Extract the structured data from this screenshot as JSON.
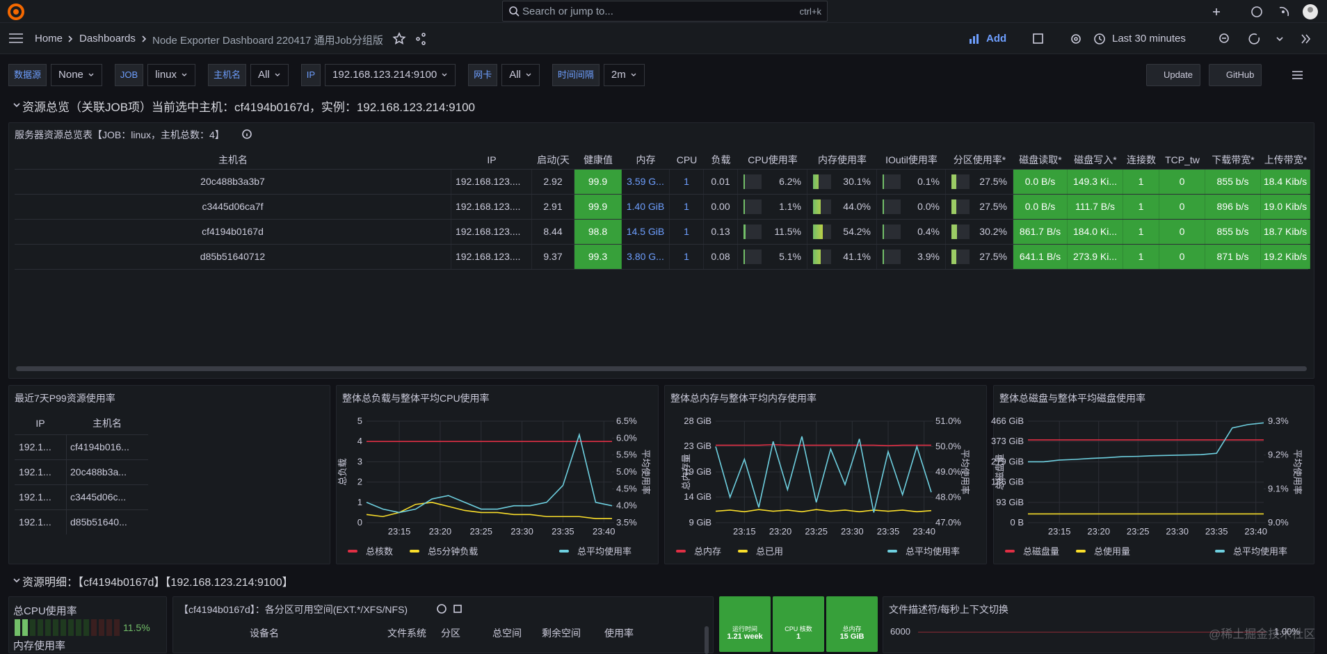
{
  "topbar": {
    "search": "Search or jump to...",
    "shortcut": "ctrl+k"
  },
  "breadcrumb": [
    "Home",
    "Dashboards",
    "Node Exporter Dashboard 220417 通用Job分组版"
  ],
  "toolbar": {
    "add": "Add",
    "time": "Last 30 minutes"
  },
  "variables": [
    {
      "label": "数据源",
      "value": "None"
    },
    {
      "label": "JOB",
      "value": "linux"
    },
    {
      "label": "主机名",
      "value": "All"
    },
    {
      "label": "IP",
      "value": "192.168.123.214:9100"
    },
    {
      "label": "网卡",
      "value": "All"
    },
    {
      "label": "时间间隔",
      "value": "2m"
    }
  ],
  "buttons": [
    "Update",
    "GitHub"
  ],
  "row1": "资源总览（关联JOB项）当前选中主机：cf4194b0167d，实例：192.168.123.214:9100",
  "table": {
    "title": "服务器资源总览表【JOB：linux，主机总数：4】",
    "columns": [
      "主机名",
      "IP",
      "启动(天",
      "健康值",
      "内存",
      "CPU",
      "负载",
      "CPU使用率",
      "内存使用率",
      "IOutil使用率",
      "分区使用率*",
      "磁盘读取*",
      "磁盘写入*",
      "连接数",
      "TCP_tw",
      "下载带宽*",
      "上传带宽*"
    ],
    "rows": [
      [
        "20c488b3a3b7",
        "192.168.123....",
        "2.92",
        "99.9",
        "3.59 G...",
        "1",
        "0.01",
        "6.2%",
        "30.1%",
        "0.1%",
        "27.5%",
        "0.0 B/s",
        "149.3 Ki...",
        "1",
        "0",
        "855 b/s",
        "18.4 Kib/s"
      ],
      [
        "c3445d06ca7f",
        "192.168.123....",
        "2.91",
        "99.9",
        "1.40 GiB",
        "1",
        "0.00",
        "1.1%",
        "44.0%",
        "0.0%",
        "27.5%",
        "0.0 B/s",
        "111.7 B/s",
        "1",
        "0",
        "896 b/s",
        "19.0 Kib/s"
      ],
      [
        "cf4194b0167d",
        "192.168.123....",
        "8.44",
        "98.8",
        "14.5 GiB",
        "1",
        "0.13",
        "11.5%",
        "54.2%",
        "0.4%",
        "30.2%",
        "861.7 B/s",
        "184.0 Ki...",
        "1",
        "0",
        "855 b/s",
        "18.7 Kib/s"
      ],
      [
        "d85b51640712",
        "192.168.123....",
        "9.37",
        "99.3",
        "3.80 G...",
        "1",
        "0.08",
        "5.1%",
        "41.1%",
        "3.9%",
        "27.5%",
        "641.1 B/s",
        "273.9 Ki...",
        "1",
        "0",
        "871 b/s",
        "19.2 Kib/s"
      ]
    ]
  },
  "p99": {
    "title": "最近7天P99资源使用率",
    "columns": [
      "IP",
      "主机名"
    ],
    "rows": [
      [
        "192.1...",
        "cf4194b016..."
      ],
      [
        "192.1...",
        "20c488b3a..."
      ],
      [
        "192.1...",
        "c3445d06c..."
      ],
      [
        "192.1...",
        "d85b51640..."
      ]
    ]
  },
  "chart_data": [
    {
      "type": "line",
      "title": "整体总负载与整体平均CPU使用率",
      "ylabel": "总负载",
      "y2label": "平均使用率",
      "x": [
        "23:11",
        "23:13",
        "23:15",
        "23:17",
        "23:19",
        "23:21",
        "23:23",
        "23:25",
        "23:27",
        "23:29",
        "23:31",
        "23:33",
        "23:35",
        "23:37",
        "23:39",
        "23:41"
      ],
      "xlim": [
        "23:11",
        "23:41"
      ],
      "xticks": [
        "23:15",
        "23:20",
        "23:25",
        "23:30",
        "23:35",
        "23:40"
      ],
      "ylim": [
        0,
        5
      ],
      "yticks": [
        0,
        1,
        2,
        3,
        4,
        5
      ],
      "y2lim": [
        3.5,
        6.5
      ],
      "y2ticks": [
        {
          "value": 3.5,
          "label": "3.5%"
        },
        {
          "value": 4.0,
          "label": "4.0%"
        },
        {
          "value": 4.5,
          "label": "4.5%"
        },
        {
          "value": 5.0,
          "label": "5.0%"
        },
        {
          "value": 5.5,
          "label": "5.5%"
        },
        {
          "value": 6.0,
          "label": "6.0%"
        },
        {
          "value": 6.5,
          "label": "6.5%"
        }
      ],
      "series": [
        {
          "name": "总核数",
          "color": "#e02f44",
          "values": [
            4,
            4,
            4,
            4,
            4,
            4,
            4,
            4,
            4,
            4,
            4,
            4,
            4,
            4,
            4,
            4
          ]
        },
        {
          "name": "总5分钟负载",
          "color": "#fade2a",
          "values": [
            0.4,
            0.3,
            0.5,
            0.9,
            1.0,
            0.8,
            0.6,
            0.5,
            0.5,
            0.4,
            0.4,
            0.3,
            0.3,
            0.3,
            0.2,
            0.2
          ]
        },
        {
          "name": "总平均使用率",
          "color": "#6ed0e0",
          "axis": "y2",
          "values": [
            4.1,
            3.9,
            3.8,
            3.9,
            4.2,
            4.3,
            4.1,
            3.9,
            3.9,
            4.0,
            4.0,
            4.1,
            4.6,
            6.1,
            4.1,
            4.0
          ]
        }
      ]
    },
    {
      "type": "line",
      "title": "整体总内存与整体平均内存使用率",
      "ylabel": "总内存量",
      "y2label": "平均使用率",
      "x": [
        "23:11",
        "23:13",
        "23:15",
        "23:17",
        "23:19",
        "23:21",
        "23:23",
        "23:25",
        "23:27",
        "23:29",
        "23:31",
        "23:33",
        "23:35",
        "23:37",
        "23:39",
        "23:41"
      ],
      "xlim": [
        "23:11",
        "23:41"
      ],
      "xticks": [
        "23:15",
        "23:20",
        "23:25",
        "23:30",
        "23:35",
        "23:40"
      ],
      "ylim": [
        9.3,
        27.9
      ],
      "yticks": [
        {
          "value": 9.3,
          "label": "9 GiB"
        },
        {
          "value": 14,
          "label": "14 GiB"
        },
        {
          "value": 18.6,
          "label": "19 GiB"
        },
        {
          "value": 23.3,
          "label": "23 GiB"
        },
        {
          "value": 27.9,
          "label": "28 GiB"
        }
      ],
      "y2lim": [
        47,
        51
      ],
      "y2ticks": [
        {
          "value": 47,
          "label": "47.0%"
        },
        {
          "value": 48,
          "label": "48.0%"
        },
        {
          "value": 49,
          "label": "49.0%"
        },
        {
          "value": 50,
          "label": "50.0%"
        },
        {
          "value": 51,
          "label": "51.0%"
        }
      ],
      "series": [
        {
          "name": "总内存",
          "color": "#e02f44",
          "values": [
            23.5,
            23.5,
            23.5,
            23.5,
            23.6,
            23.5,
            23.5,
            23.5,
            23.5,
            23.5,
            23.5,
            23.5,
            23.4,
            23.5,
            23.5,
            23.5
          ]
        },
        {
          "name": "总已用",
          "color": "#fade2a",
          "values": [
            11.4,
            11.6,
            11.3,
            11.7,
            11.4,
            11.6,
            11.3,
            11.7,
            11.4,
            11.6,
            11.3,
            11.6,
            11.4,
            11.6,
            11.3,
            11.5
          ]
        },
        {
          "name": "总平均使用率",
          "color": "#6ed0e0",
          "axis": "y2",
          "values": [
            50.0,
            48.0,
            49.5,
            47.6,
            50.2,
            48.3,
            50.4,
            47.8,
            49.9,
            48.5,
            50.3,
            47.4,
            49.8,
            48.1,
            50.0,
            48.2
          ]
        }
      ]
    },
    {
      "type": "line",
      "title": "整体总磁盘与整体平均磁盘使用率",
      "ylabel": "总磁盘量",
      "y2label": "平均使用率",
      "x": [
        "23:11",
        "23:13",
        "23:15",
        "23:17",
        "23:19",
        "23:21",
        "23:23",
        "23:25",
        "23:27",
        "23:29",
        "23:31",
        "23:33",
        "23:35",
        "23:37",
        "23:39",
        "23:41"
      ],
      "xlim": [
        "23:11",
        "23:41"
      ],
      "xticks": [
        "23:15",
        "23:20",
        "23:25",
        "23:30",
        "23:35",
        "23:40"
      ],
      "ylim": [
        0,
        466
      ],
      "yticks": [
        {
          "value": 0,
          "label": "0 B"
        },
        {
          "value": 93,
          "label": "93 GiB"
        },
        {
          "value": 186,
          "label": "186 GiB"
        },
        {
          "value": 279,
          "label": "279 GiB"
        },
        {
          "value": 373,
          "label": "373 GiB"
        },
        {
          "value": 466,
          "label": "466 GiB"
        }
      ],
      "y2lim": [
        9.0,
        9.3
      ],
      "y2ticks": [
        {
          "value": 9.0,
          "label": "9.0%"
        },
        {
          "value": 9.1,
          "label": "9.1%"
        },
        {
          "value": 9.2,
          "label": "9.2%"
        },
        {
          "value": 9.3,
          "label": "9.3%"
        }
      ],
      "series": [
        {
          "name": "总磁盘量",
          "color": "#e02f44",
          "values": [
            380,
            380,
            380,
            380,
            380,
            380,
            380,
            380,
            380,
            380,
            380,
            380,
            380,
            380,
            380,
            380
          ]
        },
        {
          "name": "总使用量",
          "color": "#fade2a",
          "values": [
            40,
            40,
            40,
            40,
            40,
            40,
            40,
            40,
            40,
            40,
            40,
            40,
            40,
            40,
            40,
            40
          ]
        },
        {
          "name": "总平均使用率",
          "color": "#6ed0e0",
          "axis": "y2",
          "values": [
            9.18,
            9.18,
            9.185,
            9.187,
            9.19,
            9.192,
            9.195,
            9.196,
            9.198,
            9.199,
            9.2,
            9.201,
            9.205,
            9.28,
            9.29,
            9.295
          ]
        }
      ]
    }
  ],
  "row2": "资源明细：【cf4194b0167d】【192.168.123.214:9100】",
  "cpu_panel": {
    "title": "总CPU使用率",
    "value": "11.5%",
    "next": "内存使用率"
  },
  "partition": {
    "title": "【cf4194b0167d】：各分区可用空间(EXT.*/XFS/NFS)",
    "columns": [
      "设备名",
      "文件系统",
      "分区",
      "总空间",
      "剩余空间",
      "使用率"
    ]
  },
  "stats": [
    {
      "label": "运行时间",
      "value": "1.21 week"
    },
    {
      "label": "CPU 核数",
      "value": "1"
    },
    {
      "label": "总内存",
      "value": "15 GiB"
    }
  ],
  "files": {
    "title": "文件描述符/每秒上下文切换",
    "left": "6000",
    "right": "1.00%"
  },
  "watermark": "@稀土掘金技术社区"
}
